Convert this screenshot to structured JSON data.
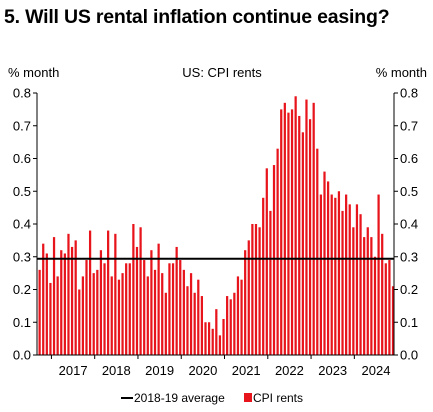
{
  "title": "5. Will US rental inflation continue easing?",
  "chart_data": {
    "type": "bar",
    "subtitle": "US: CPI rents",
    "ylabel_left": "% month",
    "ylabel_right": "% month",
    "ylim": [
      0,
      0.8
    ],
    "yticks": [
      "0.0",
      "0.1",
      "0.2",
      "0.3",
      "0.4",
      "0.5",
      "0.6",
      "0.7",
      "0.8"
    ],
    "x_start": "2016-09",
    "year_labels": [
      "2017",
      "2018",
      "2019",
      "2020",
      "2021",
      "2022",
      "2023",
      "2024"
    ],
    "grid": false,
    "legend_position": "bottom",
    "colors": {
      "bars": "#e8141c",
      "average_line": "#000000"
    },
    "series": [
      {
        "name": "CPI rents",
        "values": [
          0.26,
          0.34,
          0.31,
          0.22,
          0.36,
          0.24,
          0.32,
          0.31,
          0.37,
          0.33,
          0.35,
          0.2,
          0.24,
          0.29,
          0.38,
          0.25,
          0.26,
          0.32,
          0.28,
          0.38,
          0.24,
          0.37,
          0.23,
          0.25,
          0.28,
          0.28,
          0.4,
          0.33,
          0.39,
          0.29,
          0.24,
          0.32,
          0.26,
          0.34,
          0.25,
          0.19,
          0.28,
          0.28,
          0.33,
          0.29,
          0.26,
          0.21,
          0.25,
          0.19,
          0.23,
          0.18,
          0.1,
          0.1,
          0.08,
          0.14,
          0.06,
          0.11,
          0.18,
          0.17,
          0.19,
          0.24,
          0.23,
          0.32,
          0.35,
          0.4,
          0.4,
          0.39,
          0.48,
          0.57,
          0.44,
          0.58,
          0.63,
          0.75,
          0.77,
          0.74,
          0.75,
          0.79,
          0.73,
          0.68,
          0.78,
          0.72,
          0.77,
          0.63,
          0.49,
          0.56,
          0.53,
          0.49,
          0.48,
          0.5,
          0.44,
          0.49,
          0.46,
          0.39,
          0.46,
          0.43,
          0.36,
          0.39,
          0.36,
          0.3,
          0.49,
          0.37,
          0.28,
          0.29,
          0.21
        ]
      },
      {
        "name": "2018-19 average",
        "value": 0.294
      }
    ]
  }
}
